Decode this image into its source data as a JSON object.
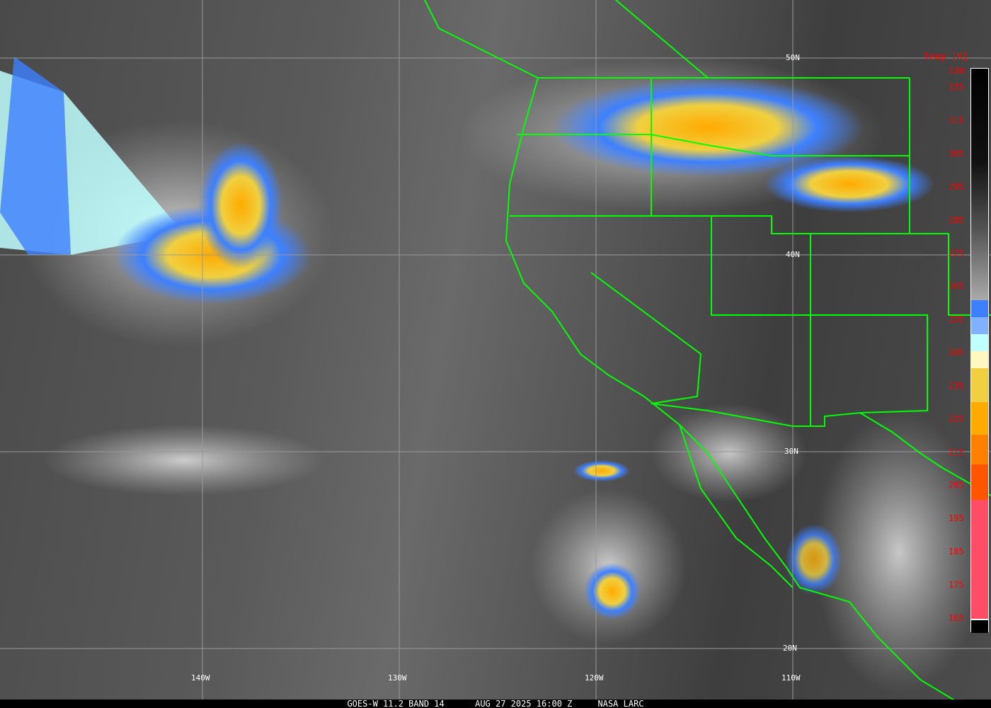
{
  "caption": {
    "satellite": "GOES-W 11.2 BAND 14",
    "datetime": "AUG 27 2025 16:00 Z",
    "source": "NASA LARC"
  },
  "grid": {
    "latitudes": [
      "50N",
      "40N",
      "30N",
      "20N"
    ],
    "longitudes": [
      "140W",
      "130W",
      "120W",
      "110W"
    ]
  },
  "colorbar": {
    "title": "Temp [K]",
    "ticks": [
      "330",
      "325",
      "315",
      "305",
      "295",
      "285",
      "275",
      "265",
      "255",
      "245",
      "235",
      "225",
      "215",
      "205",
      "195",
      "185",
      "175",
      "165"
    ],
    "range": [
      163,
      330
    ],
    "colors": {
      "cold_pink": "#ff4d66",
      "red_orange": "#ff5500",
      "dark_orange": "#ff8000",
      "orange": "#ffaa00",
      "gold": "#f0d040",
      "cream": "#fff8c0",
      "light_cyan": "#c0ffff",
      "mid_blue": "#80b0ff",
      "blue": "#3d80ff"
    }
  },
  "borders_color": "#00ff00"
}
